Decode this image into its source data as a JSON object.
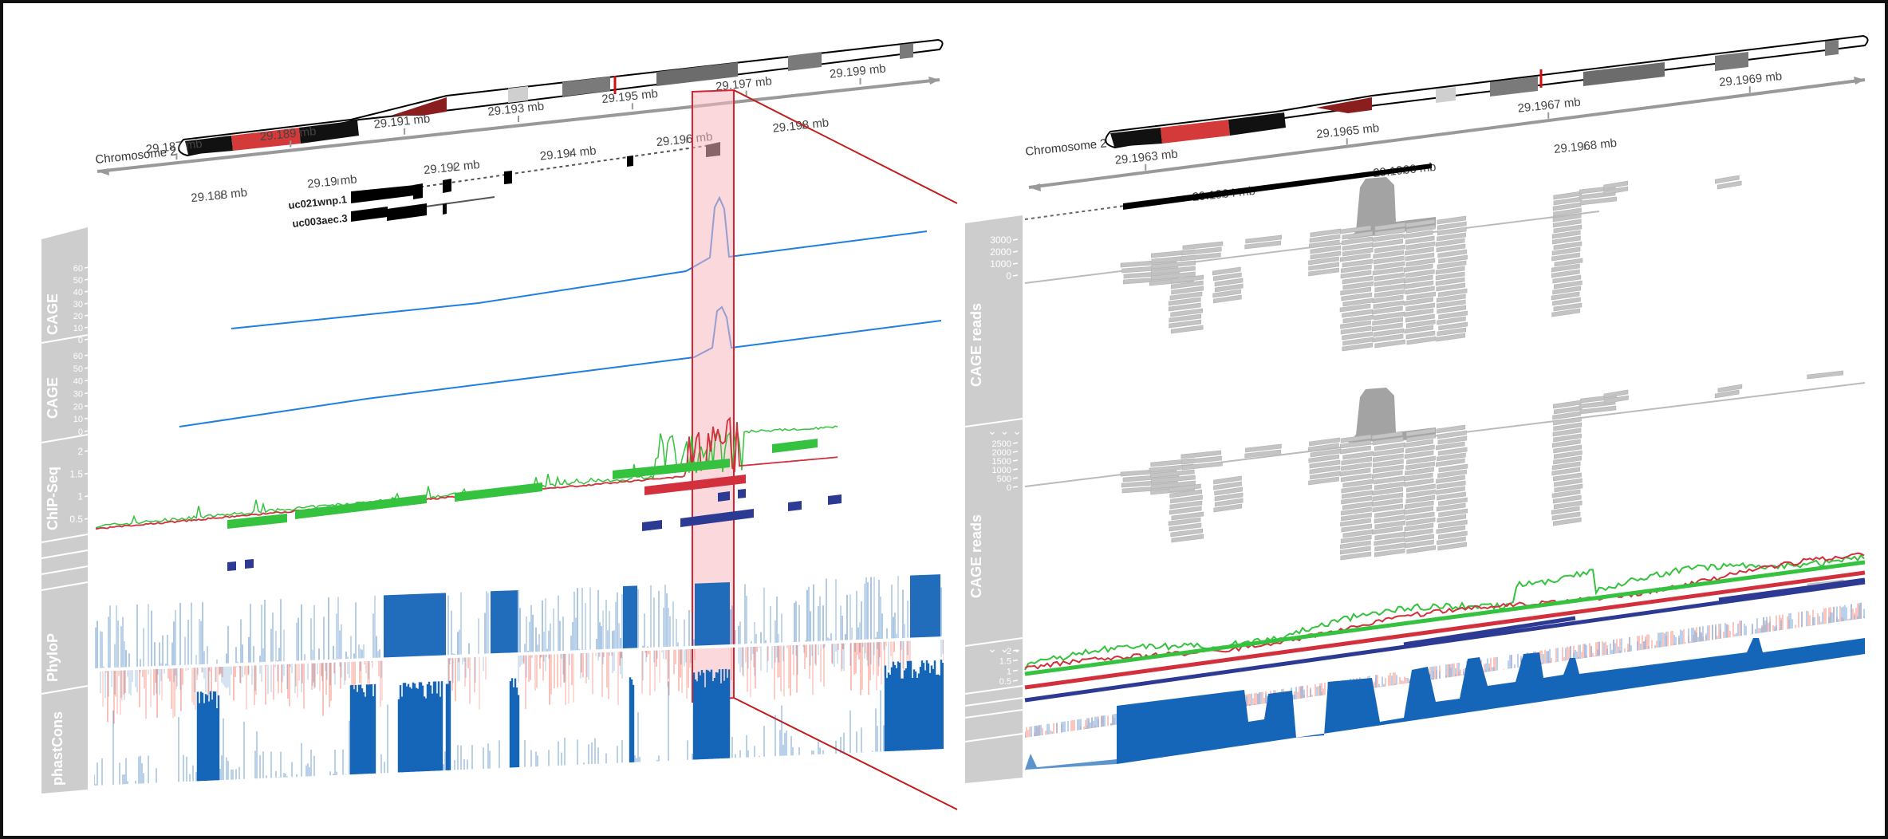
{
  "colors": {
    "blue_line": "#1f7fe0",
    "green": "#35c23f",
    "red": "#d1303c",
    "navy": "#2c3a93",
    "conservation_blue": "#1565b8",
    "conservation_red": "#f0604a",
    "highlight_fill": "#f7c9cf",
    "highlight_stroke": "#d9222f",
    "label_panel": "#cdcdcd",
    "reads": "#c4c4c4"
  },
  "left": {
    "chromosome_label": "Chromosome 2",
    "axis_upper": [
      "29.187 mb",
      "29.189 mb",
      "29.191 mb",
      "29.193 mb",
      "29.195 mb",
      "29.197 mb",
      "29.199 mb"
    ],
    "axis_lower": [
      "29.188 mb",
      "29.19 mb",
      "29.192 mb",
      "29.194 mb",
      "29.196 mb",
      "29.198 mb"
    ],
    "transcripts": [
      "uc021wnp.1",
      "uc003aec.3"
    ],
    "track_labels": [
      "CAGE",
      "CAGE",
      "ChIP-Seq",
      "PhyloP",
      "phastCons"
    ],
    "cage_ticks": [
      "0",
      "10",
      "20",
      "30",
      "40",
      "50",
      "60"
    ],
    "chip_ticks": [
      "0.5",
      "1",
      "1.5",
      "2"
    ]
  },
  "right": {
    "chromosome_label": "Chromosome 2",
    "axis_upper": [
      "29.1963 mb",
      "29.1965 mb",
      "29.1967 mb",
      "29.1969 mb"
    ],
    "axis_lower": [
      "29.1964 mb",
      "29.1966 mb",
      "29.1968 mb"
    ],
    "track_labels": [
      "CAGE reads",
      "CAGE reads"
    ],
    "cov_ticks_1": [
      "0",
      "1000",
      "2000",
      "3000"
    ],
    "cov_ticks_2": [
      "0",
      "500",
      "1000",
      "1500",
      "2000",
      "2500"
    ],
    "chip_ticks": [
      "0.5",
      "1",
      "1.5",
      "2"
    ]
  }
}
